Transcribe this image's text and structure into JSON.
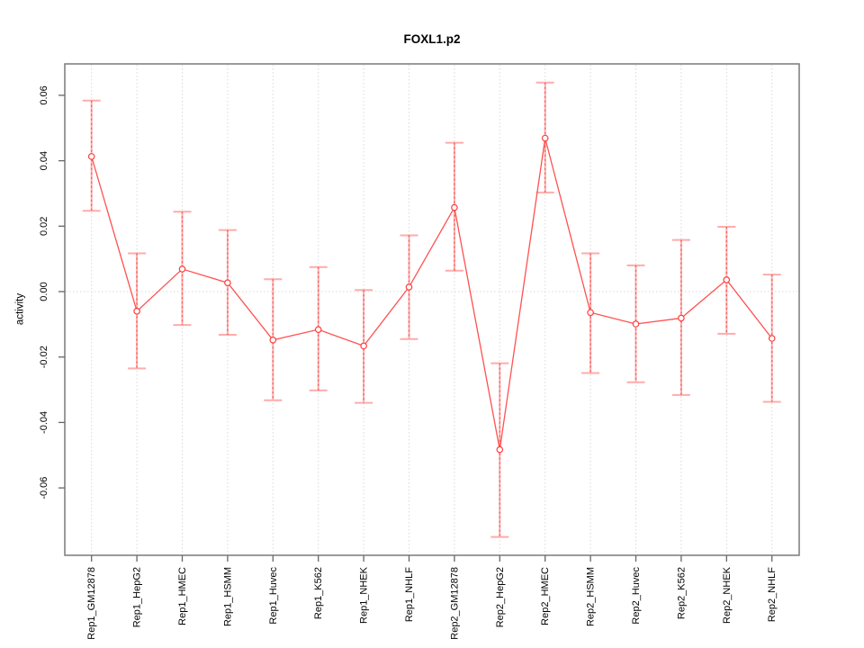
{
  "chart_data": {
    "type": "line",
    "title": "FOXL1.p2",
    "xlabel": "",
    "ylabel": "activity",
    "categories": [
      "Rep1_GM12878",
      "Rep1_HepG2",
      "Rep1_HMEC",
      "Rep1_HSMM",
      "Rep1_Huvec",
      "Rep1_K562",
      "Rep1_NHEK",
      "Rep1_NHLF",
      "Rep2_GM12878",
      "Rep2_HepG2",
      "Rep2_HMEC",
      "Rep2_HSMM",
      "Rep2_Huvec",
      "Rep2_K562",
      "Rep2_NHEK",
      "Rep2_NHLF"
    ],
    "series": [
      {
        "name": "activity",
        "values": [
          0.0413,
          -0.006,
          0.0069,
          0.0027,
          -0.0148,
          -0.0116,
          -0.0166,
          0.0014,
          0.0257,
          -0.0483,
          0.0469,
          -0.0064,
          -0.0099,
          -0.0081,
          0.0036,
          -0.0143
        ],
        "error_upper": [
          0.0584,
          0.0117,
          0.0244,
          0.0188,
          0.0038,
          0.0075,
          0.0005,
          0.0172,
          0.0455,
          -0.0219,
          0.0639,
          0.0117,
          0.008,
          0.0158,
          0.0198,
          0.0052
        ],
        "error_lower": [
          0.0247,
          -0.0235,
          -0.0102,
          -0.0132,
          -0.0332,
          -0.0302,
          -0.034,
          -0.0145,
          0.0064,
          -0.075,
          0.0303,
          -0.0249,
          -0.0277,
          -0.0316,
          -0.0129,
          -0.0337
        ]
      }
    ],
    "ylim": [
      -0.0806,
      0.0696
    ],
    "yticks": [
      -0.06,
      -0.04,
      -0.02,
      0,
      0.02,
      0.04,
      0.06
    ],
    "ytick_labels": [
      "-0.06",
      "-0.04",
      "-0.02",
      "0.00",
      "0.02",
      "0.04",
      "0.06"
    ],
    "grid": {
      "vertical_dotted": true,
      "zero_line_dotted": true,
      "horizontal": false
    },
    "legend": {
      "visible": false
    },
    "point_marker": "open-circle",
    "colors": {
      "point_line": "#ff5050",
      "point_stroke": "#ff3d3d",
      "error_bar": "#ffabab",
      "error_bar_dotted": "#ee5c5c",
      "gridline": "#d9d9d9",
      "axis_box": "#828282",
      "tick": "#666666",
      "text": "#000000",
      "background": "#ffffff"
    }
  }
}
